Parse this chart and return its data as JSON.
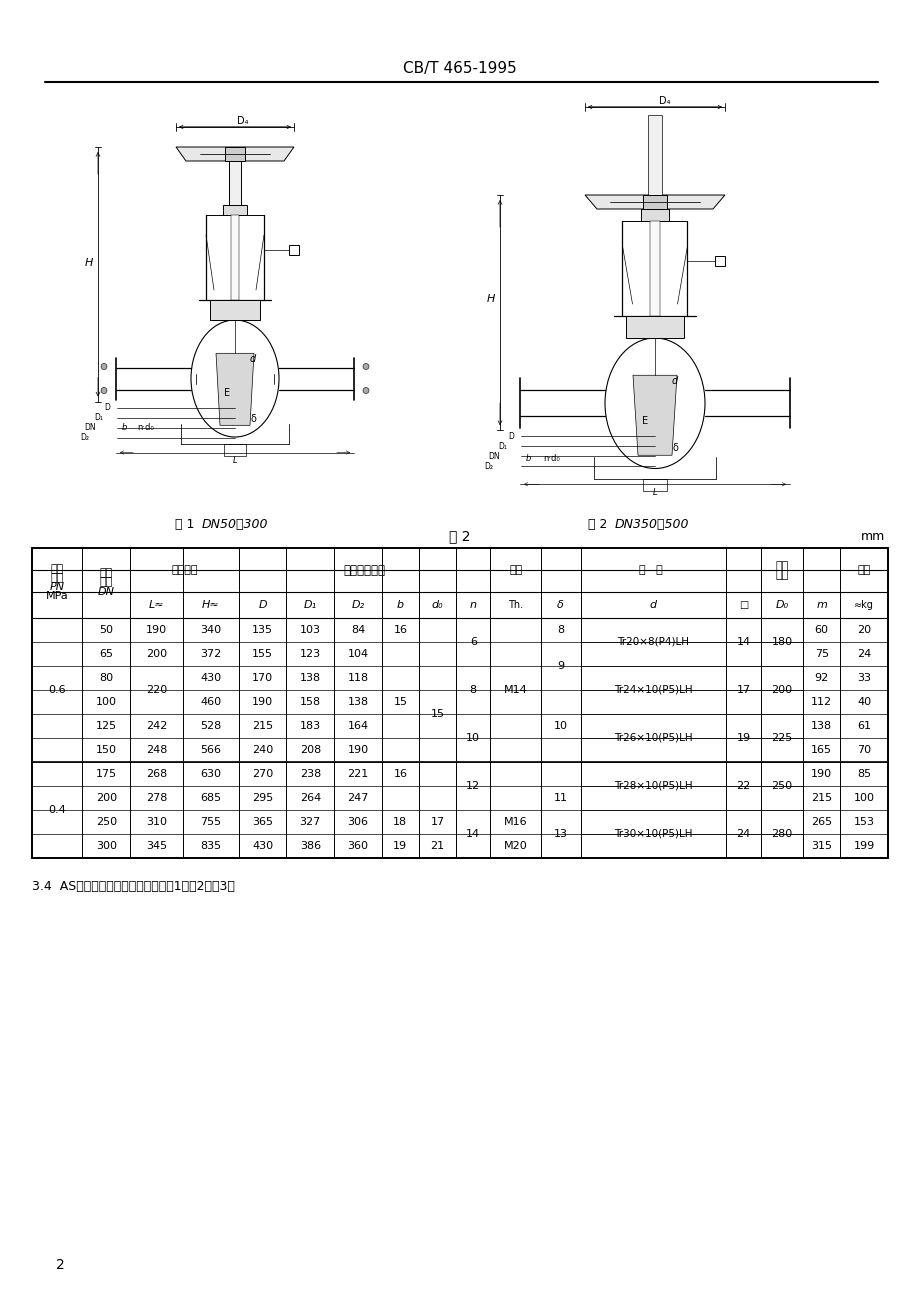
{
  "title": "CB/T 465-1995",
  "fig1_caption_num": "图 1",
  "fig1_caption_txt": "DN50～300",
  "fig2_caption_num": "图 2",
  "fig2_caption_txt": "DN350～500",
  "table_title": "表 2",
  "table_unit": "mm",
  "note": "3.4  AS型闸阀的结构和基本尺寸按图1、图2和表3。",
  "page_number": "2",
  "background_color": "#ffffff",
  "text_color": "#000000",
  "dn_vals": [
    "50",
    "65",
    "80",
    "100",
    "125",
    "150",
    "175",
    "200",
    "250",
    "300"
  ],
  "L_vals": [
    "190",
    "200",
    "220_merge_2_4",
    "220_merge_2_4",
    "242",
    "248",
    "268",
    "278",
    "310",
    "345"
  ],
  "H_vals": [
    "340",
    "372",
    "430",
    "460",
    "528",
    "566",
    "630",
    "685",
    "755",
    "835"
  ],
  "D_vals": [
    "135",
    "155",
    "170",
    "190",
    "215",
    "240",
    "270",
    "295",
    "365",
    "430"
  ],
  "D1_vals": [
    "103",
    "123",
    "138",
    "158",
    "183",
    "208",
    "238",
    "264",
    "327",
    "386"
  ],
  "D2_vals": [
    "84",
    "104",
    "118",
    "138",
    "164",
    "190",
    "221",
    "247",
    "306",
    "360"
  ],
  "b_vals": [
    "16",
    "",
    "15",
    "15",
    "15",
    "",
    "16",
    "",
    "18",
    "19"
  ],
  "d0_vals": [
    "15",
    "15",
    "15",
    "15",
    "15",
    "15",
    "15",
    "15",
    "17",
    "21"
  ],
  "n_vals": [
    "6",
    "6",
    "8",
    "8",
    "10",
    "10",
    "12",
    "12",
    "14",
    "14"
  ],
  "Th_vals": [
    "M14",
    "M14",
    "M14",
    "M14",
    "M14",
    "M14",
    "",
    "",
    "M16",
    "M20"
  ],
  "delta_vals": [
    "8",
    "9",
    "9",
    "10",
    "10",
    "10",
    "11",
    "11",
    "13",
    "13"
  ],
  "stem_vals": [
    "Tr20×8(P4)LH",
    "",
    "Tr24×10(P5)LH",
    "",
    "Tr26×10(P5)LH",
    "",
    "Tr28×10(P5)LH",
    "",
    "Tr30×10(P5)LH",
    ""
  ],
  "sq_vals": [
    "14",
    "14",
    "17",
    "17",
    "19",
    "19",
    "22",
    "22",
    "24",
    "24"
  ],
  "D0_vals": [
    "180",
    "180",
    "200",
    "200",
    "225",
    "225",
    "250",
    "250",
    "280",
    "280"
  ],
  "m_vals": [
    "60",
    "75",
    "92",
    "112",
    "138",
    "165",
    "190",
    "215",
    "265",
    "315"
  ],
  "kg_vals": [
    "20",
    "24",
    "33",
    "40",
    "61",
    "70",
    "85",
    "100",
    "153",
    "199"
  ]
}
